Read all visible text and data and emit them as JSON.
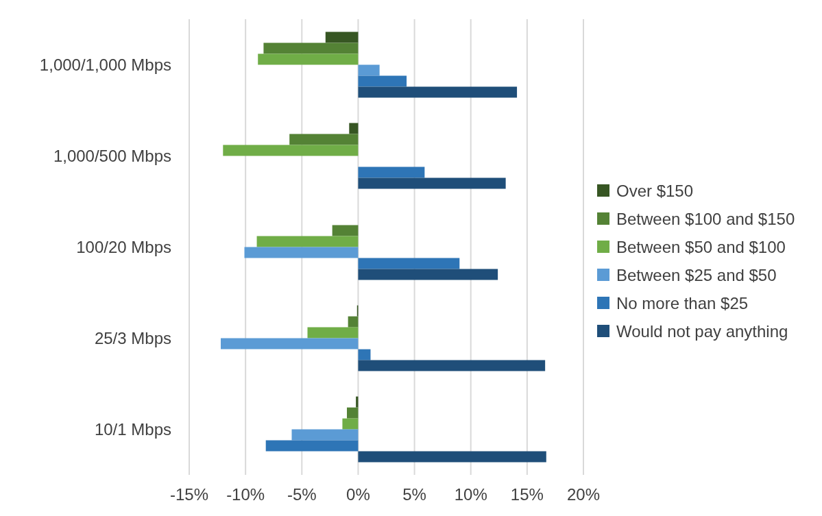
{
  "chart_data": {
    "type": "bar",
    "orientation": "horizontal",
    "categories": [
      "1,000/1,000 Mbps",
      "1,000/500 Mbps",
      "100/20 Mbps",
      "25/3 Mbps",
      "10/1 Mbps"
    ],
    "series": [
      {
        "name": "Over $150",
        "color": "#375623",
        "values": [
          -2.9,
          -0.8,
          0,
          -0.1,
          -0.2
        ]
      },
      {
        "name": "Between $100 and $150",
        "color": "#548235",
        "values": [
          -8.4,
          -6.1,
          -2.3,
          -0.9,
          -1.0
        ]
      },
      {
        "name": "Between $50 and $100",
        "color": "#70ad47",
        "values": [
          -8.9,
          -12.0,
          -9.0,
          -4.5,
          -1.4
        ]
      },
      {
        "name": "Between $25 and $50",
        "color": "#5b9bd5",
        "values": [
          1.9,
          0,
          -10.1,
          -12.2,
          -5.9
        ]
      },
      {
        "name": "No more than $25",
        "color": "#2e75b6",
        "values": [
          4.3,
          5.9,
          9.0,
          1.1,
          -8.2
        ]
      },
      {
        "name": "Would not pay anything",
        "color": "#1f4e79",
        "values": [
          14.1,
          13.1,
          12.4,
          16.6,
          16.7
        ]
      }
    ],
    "xlim": [
      -15,
      20
    ],
    "xticks": [
      {
        "value": -15,
        "label": "-15%"
      },
      {
        "value": -10,
        "label": "-10%"
      },
      {
        "value": -5,
        "label": "-5%"
      },
      {
        "value": 0,
        "label": "0%"
      },
      {
        "value": 5,
        "label": "5%"
      },
      {
        "value": 10,
        "label": "10%"
      },
      {
        "value": 15,
        "label": "15%"
      },
      {
        "value": 20,
        "label": "20%"
      }
    ],
    "grid": "x",
    "legend": "right"
  }
}
